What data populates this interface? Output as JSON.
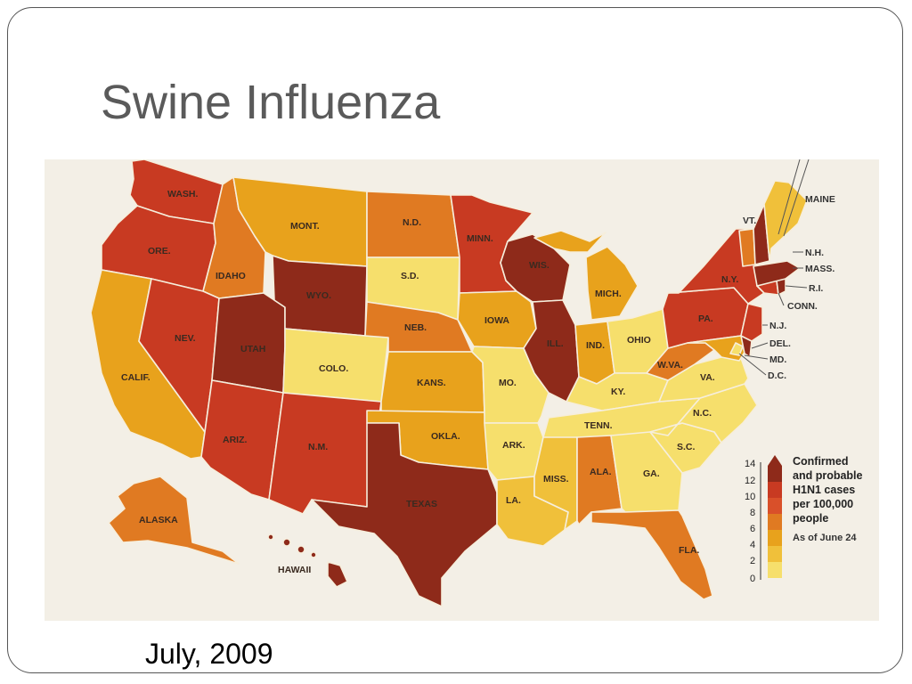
{
  "title": "Swine Influenza",
  "caption": "July, 2009",
  "colors": {
    "lvl0": "#f6df6c",
    "lvl1": "#f0c03a",
    "lvl2": "#e8a21c",
    "lvl3": "#e07a22",
    "lvl4": "#d9502a",
    "lvl5": "#c83a22",
    "lvl6": "#8e2a1a"
  },
  "legend": {
    "title_lines": [
      "Confirmed",
      "and probable",
      "H1N1 cases",
      "per 100,000",
      "people"
    ],
    "note": "As of June 24",
    "ticks": [
      "14",
      "12",
      "10",
      "8",
      "6",
      "4",
      "2",
      "0"
    ]
  },
  "states": [
    {
      "label": "WASH.",
      "level": "lvl5"
    },
    {
      "label": "ORE.",
      "level": "lvl5"
    },
    {
      "label": "CALIF.",
      "level": "lvl2"
    },
    {
      "label": "IDAHO",
      "level": "lvl3"
    },
    {
      "label": "NEV.",
      "level": "lvl5"
    },
    {
      "label": "UTAH",
      "level": "lvl6"
    },
    {
      "label": "ARIZ.",
      "level": "lvl5"
    },
    {
      "label": "MONT.",
      "level": "lvl2"
    },
    {
      "label": "WYO.",
      "level": "lvl6"
    },
    {
      "label": "COLO.",
      "level": "lvl0"
    },
    {
      "label": "N.M.",
      "level": "lvl5"
    },
    {
      "label": "N.D.",
      "level": "lvl3"
    },
    {
      "label": "S.D.",
      "level": "lvl0"
    },
    {
      "label": "NEB.",
      "level": "lvl3"
    },
    {
      "label": "KANS.",
      "level": "lvl2"
    },
    {
      "label": "OKLA.",
      "level": "lvl2"
    },
    {
      "label": "TEXAS",
      "level": "lvl6"
    },
    {
      "label": "MINN.",
      "level": "lvl5"
    },
    {
      "label": "IOWA",
      "level": "lvl2"
    },
    {
      "label": "MO.",
      "level": "lvl0"
    },
    {
      "label": "ARK.",
      "level": "lvl0"
    },
    {
      "label": "LA.",
      "level": "lvl1"
    },
    {
      "label": "WIS.",
      "level": "lvl6"
    },
    {
      "label": "ILL.",
      "level": "lvl6"
    },
    {
      "label": "MICH.",
      "level": "lvl2"
    },
    {
      "label": "IND.",
      "level": "lvl2"
    },
    {
      "label": "OHIO",
      "level": "lvl0"
    },
    {
      "label": "KY.",
      "level": "lvl0"
    },
    {
      "label": "TENN.",
      "level": "lvl0"
    },
    {
      "label": "MISS.",
      "level": "lvl1"
    },
    {
      "label": "ALA.",
      "level": "lvl3"
    },
    {
      "label": "GA.",
      "level": "lvl0"
    },
    {
      "label": "FLA.",
      "level": "lvl3"
    },
    {
      "label": "S.C.",
      "level": "lvl0"
    },
    {
      "label": "N.C.",
      "level": "lvl0"
    },
    {
      "label": "VA.",
      "level": "lvl0"
    },
    {
      "label": "W.VA.",
      "level": "lvl3"
    },
    {
      "label": "PA.",
      "level": "lvl5"
    },
    {
      "label": "N.Y.",
      "level": "lvl5"
    },
    {
      "label": "ALASKA",
      "level": "lvl3"
    },
    {
      "label": "HAWAII",
      "level": "lvl6"
    },
    {
      "label": "MAINE",
      "level": "lvl1"
    },
    {
      "label": "VT.",
      "level": "lvl3"
    },
    {
      "label": "N.H.",
      "level": "lvl6"
    },
    {
      "label": "MASS.",
      "level": "lvl6"
    },
    {
      "label": "R.I.",
      "level": "lvl6"
    },
    {
      "label": "CONN.",
      "level": "lvl5"
    },
    {
      "label": "N.J.",
      "level": "lvl5"
    },
    {
      "label": "DEL.",
      "level": "lvl6"
    },
    {
      "label": "MD.",
      "level": "lvl2"
    },
    {
      "label": "D.C.",
      "level": "lvl0"
    }
  ]
}
